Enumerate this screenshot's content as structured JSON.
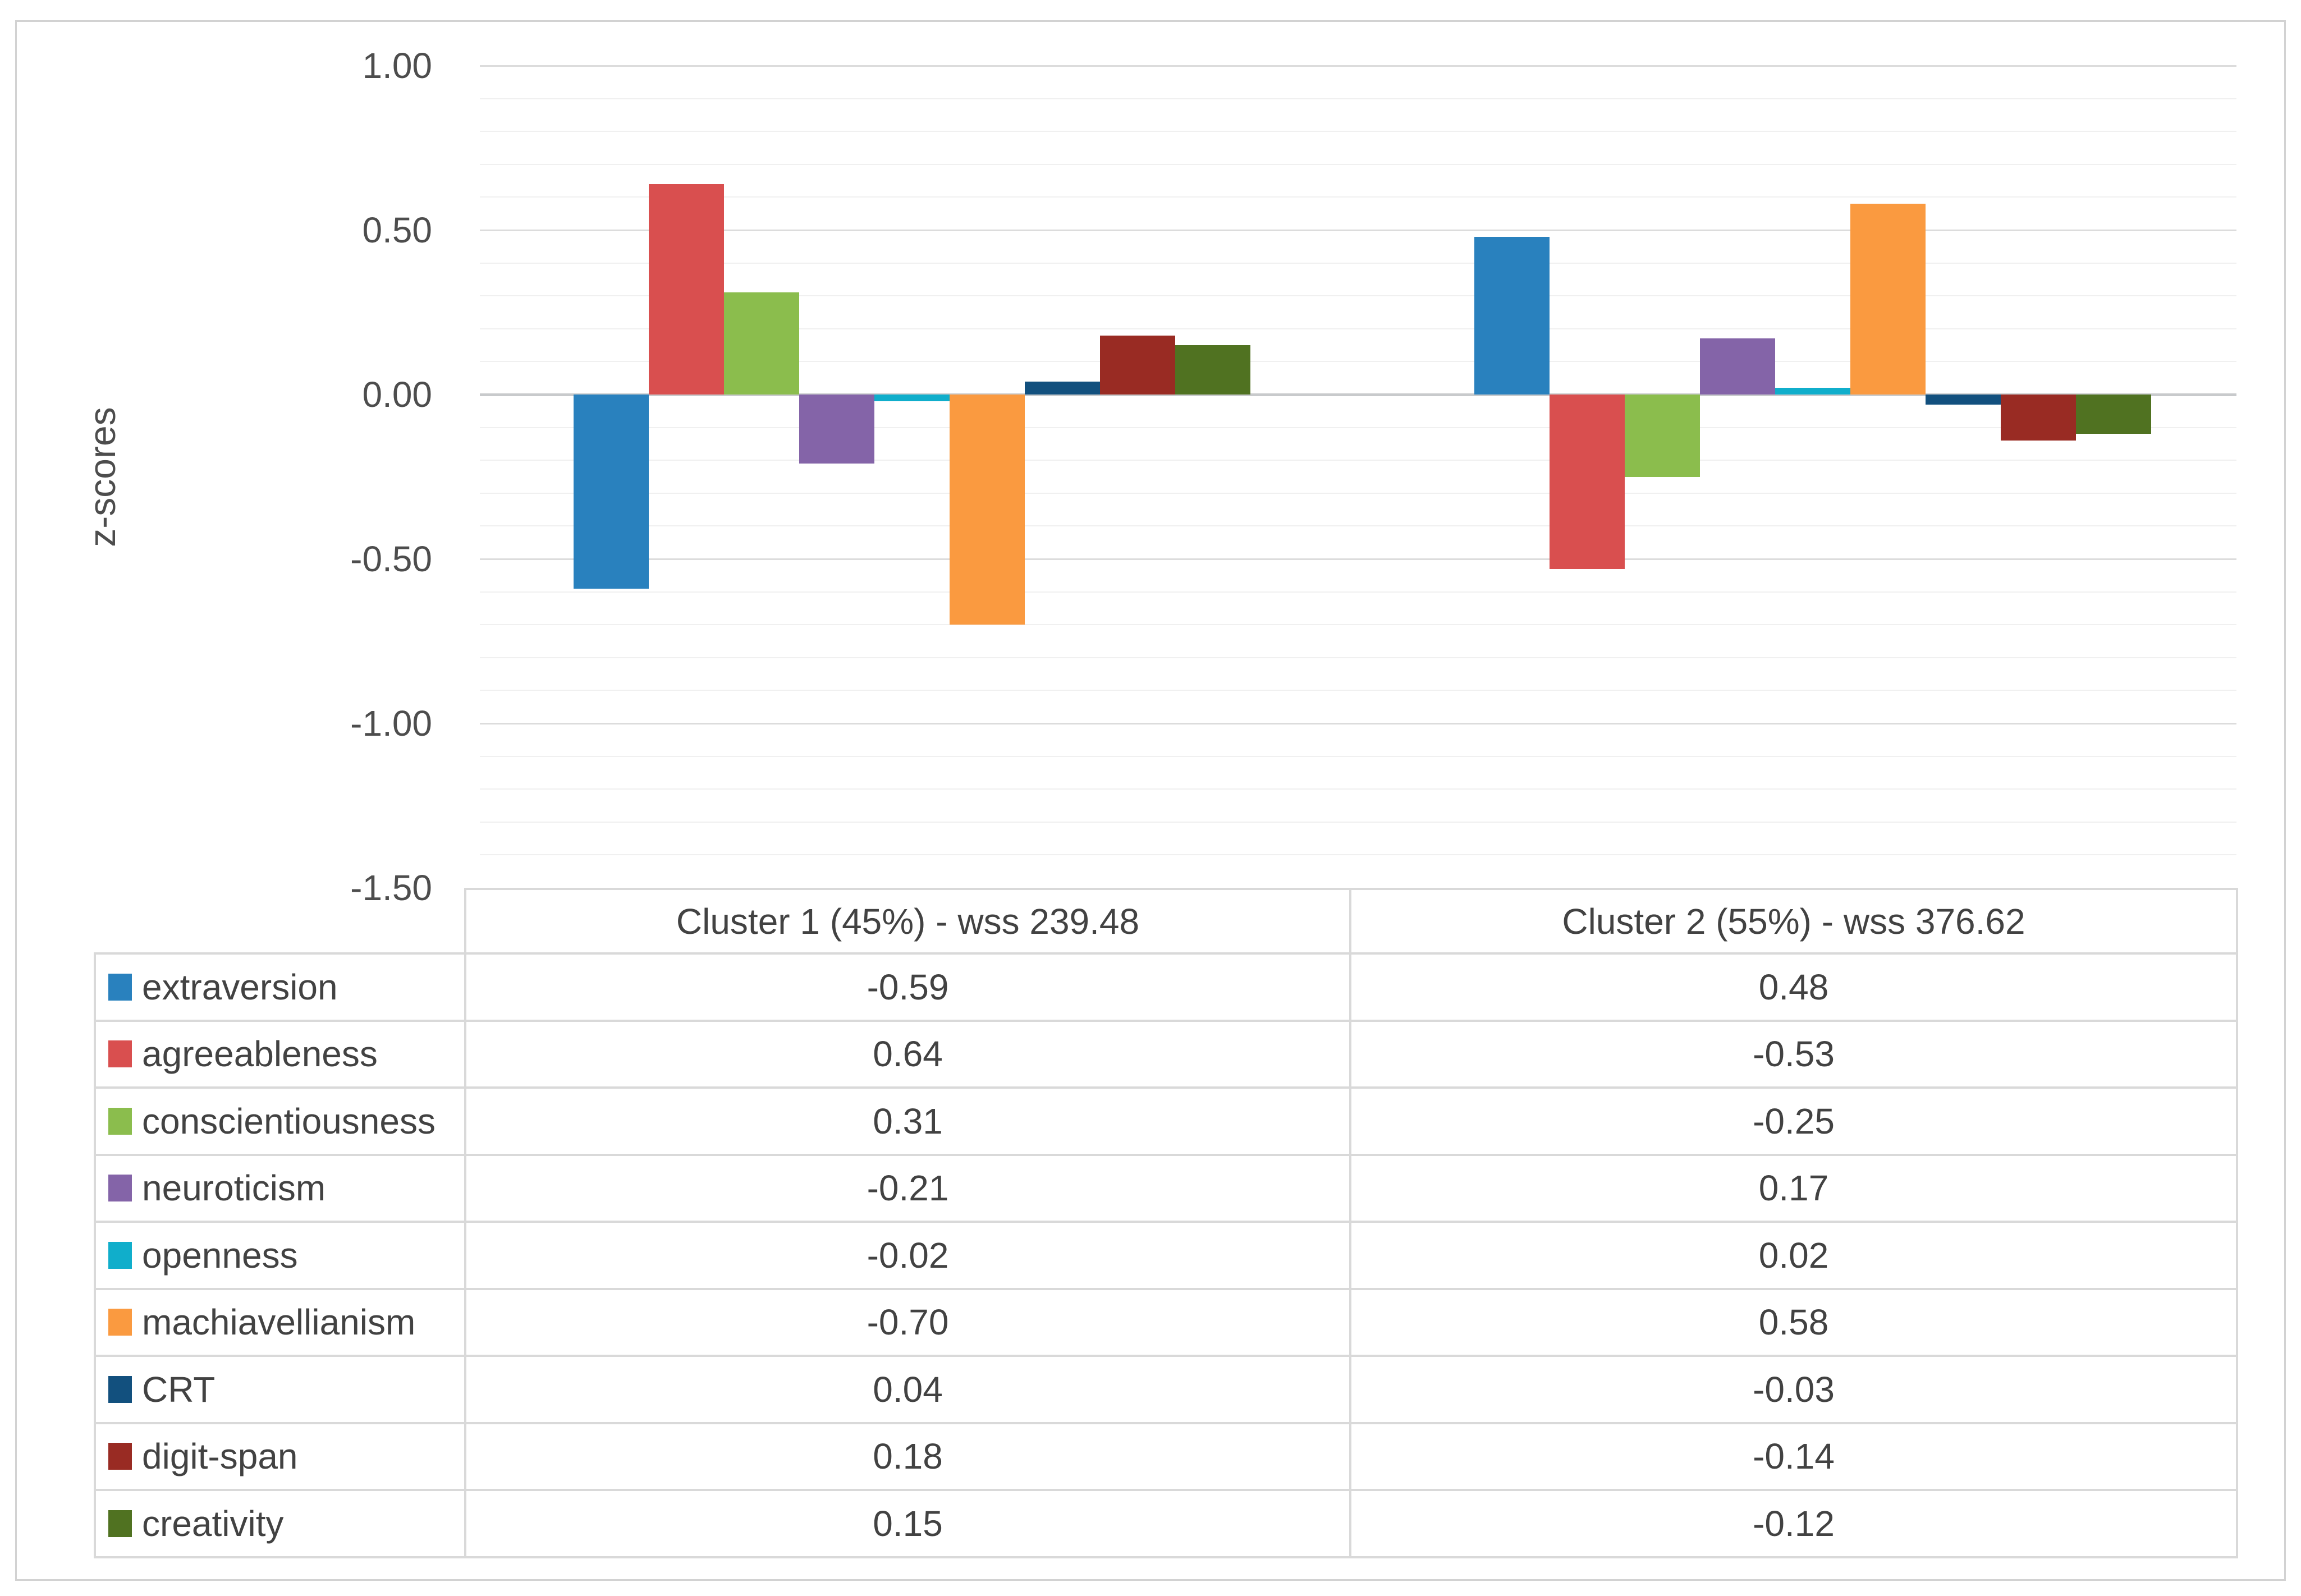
{
  "chart_data": {
    "type": "bar",
    "title": "",
    "ylabel": "z-scores",
    "xlabel": "",
    "ylim": [
      -1.5,
      1.0
    ],
    "y_major_step": 0.5,
    "y_minor_step": 0.1,
    "grid": true,
    "legend_position": "table-left-column",
    "y_tick_labels": [
      "1.00",
      "0.50",
      "0.00",
      "-0.50",
      "-1.00",
      "-1.50"
    ],
    "categories": [
      "Cluster 1 (45%) - wss 239.48",
      "Cluster 2 (55%) - wss 376.62"
    ],
    "series": [
      {
        "name": "extraversion",
        "color": "#2981be",
        "values": [
          -0.59,
          0.48
        ]
      },
      {
        "name": "agreeableness",
        "color": "#d94f4f",
        "values": [
          0.64,
          -0.53
        ]
      },
      {
        "name": "conscientiousness",
        "color": "#8bbd4d",
        "values": [
          0.31,
          -0.25
        ]
      },
      {
        "name": "neuroticism",
        "color": "#8464a8",
        "values": [
          -0.21,
          0.17
        ]
      },
      {
        "name": "openness",
        "color": "#10aecb",
        "values": [
          -0.02,
          0.02
        ]
      },
      {
        "name": "machiavellianism",
        "color": "#fa9a40",
        "values": [
          -0.7,
          0.58
        ]
      },
      {
        "name": "CRT",
        "color": "#12507e",
        "values": [
          0.04,
          -0.03
        ]
      },
      {
        "name": "digit-span",
        "color": "#992b23",
        "values": [
          0.18,
          -0.14
        ]
      },
      {
        "name": "creativity",
        "color": "#507221",
        "values": [
          0.15,
          -0.12
        ]
      }
    ]
  },
  "table": {
    "col_headers": [
      "Cluster 1 (45%) - wss 239.48",
      "Cluster 2 (55%) - wss 376.62"
    ],
    "rows": [
      {
        "label": "extraversion",
        "values": [
          "-0.59",
          "0.48"
        ]
      },
      {
        "label": "agreeableness",
        "values": [
          "0.64",
          "-0.53"
        ]
      },
      {
        "label": "conscientiousness",
        "values": [
          "0.31",
          "-0.25"
        ]
      },
      {
        "label": "neuroticism",
        "values": [
          "-0.21",
          "0.17"
        ]
      },
      {
        "label": "openness",
        "values": [
          "-0.02",
          "0.02"
        ]
      },
      {
        "label": "machiavellianism",
        "values": [
          "-0.70",
          "0.58"
        ]
      },
      {
        "label": "CRT",
        "values": [
          "0.04",
          "-0.03"
        ]
      },
      {
        "label": "digit-span",
        "values": [
          "0.18",
          "-0.14"
        ]
      },
      {
        "label": "creativity",
        "values": [
          "0.15",
          "-0.12"
        ]
      }
    ]
  }
}
